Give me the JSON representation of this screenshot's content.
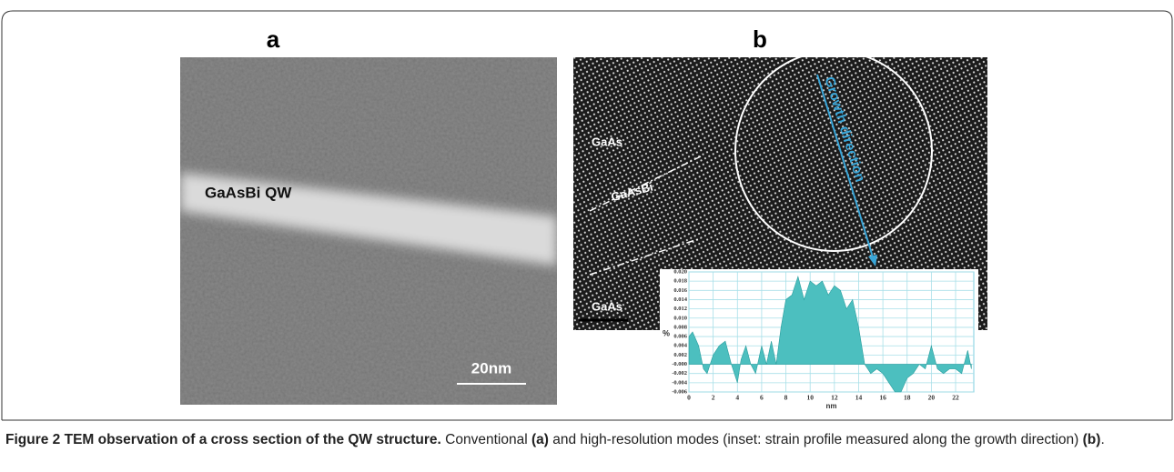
{
  "chart_data": {
    "type": "area",
    "y_label": "%",
    "x_label": "nm",
    "x": [
      0,
      0.3,
      0.8,
      1.2,
      1.5,
      2,
      2.5,
      3,
      3.5,
      4,
      4.3,
      4.7,
      5.1,
      5.5,
      6,
      6.4,
      6.8,
      7.2,
      7.6,
      8,
      8.5,
      9,
      9.5,
      10,
      10.5,
      11,
      11.5,
      12,
      12.5,
      13,
      13.5,
      14,
      14.5,
      15,
      15.5,
      16,
      16.5,
      17,
      17.5,
      18,
      18.5,
      19,
      19.5,
      20,
      20.5,
      21,
      21.5,
      22,
      22.5,
      23,
      23.3
    ],
    "values": [
      0.006,
      0.007,
      0.004,
      -0.001,
      -0.002,
      0.002,
      0.004,
      0.005,
      0.0,
      -0.004,
      0.001,
      0.004,
      0.0,
      -0.002,
      0.004,
      0.0,
      0.005,
      0.0,
      0.008,
      0.014,
      0.015,
      0.019,
      0.014,
      0.018,
      0.017,
      0.018,
      0.015,
      0.017,
      0.016,
      0.012,
      0.014,
      0.008,
      0.0,
      -0.002,
      -0.001,
      -0.002,
      -0.004,
      -0.006,
      -0.006,
      -0.003,
      -0.002,
      0.0,
      -0.001,
      0.004,
      -0.001,
      -0.002,
      -0.001,
      -0.001,
      -0.002,
      0.003,
      -0.001
    ],
    "color": "#4cbfbf",
    "xlim": [
      0,
      23.5
    ],
    "ylim": [
      -0.006,
      0.02
    ],
    "xticks": [
      0,
      2,
      4,
      6,
      8,
      10,
      12,
      14,
      16,
      18,
      20,
      22
    ],
    "yticks": [
      {
        "value": 0.02,
        "label": "0.020"
      },
      {
        "value": 0.018,
        "label": "0.018"
      },
      {
        "value": 0.016,
        "label": "0.016"
      },
      {
        "value": 0.014,
        "label": "0.014"
      },
      {
        "value": 0.012,
        "label": "0.012"
      },
      {
        "value": 0.01,
        "label": "0.010"
      },
      {
        "value": 0.008,
        "label": "0.008"
      },
      {
        "value": 0.006,
        "label": "0.006"
      },
      {
        "value": 0.004,
        "label": "0.004"
      },
      {
        "value": 0.002,
        "label": "0.002"
      },
      {
        "value": 0,
        "label": "-0.000"
      },
      {
        "value": -0.002,
        "label": "-0.002"
      },
      {
        "value": -0.004,
        "label": "-0.004"
      },
      {
        "value": -0.006,
        "label": "-0.006"
      }
    ],
    "grid": true
  },
  "figure": {
    "panel_labels": [
      "a",
      "b"
    ],
    "panel_a": {
      "label": "GaAsBi QW",
      "scale": "20nm"
    },
    "panel_b": {
      "labels": [
        "GaAs",
        "GaAsBi",
        "GaAs"
      ],
      "arrow_label": "Growth direction"
    },
    "caption": [
      {
        "text": "Figure 2 TEM observation of a cross section of the QW structure.",
        "bold": true
      },
      {
        "text": " Conventional ",
        "bold": false
      },
      {
        "text": "(a)",
        "bold": true
      },
      {
        "text": " and high-resolution modes (inset: strain profile measured along the growth direction) ",
        "bold": false
      },
      {
        "text": "(b)",
        "bold": true
      },
      {
        "text": ".",
        "bold": false
      }
    ]
  }
}
